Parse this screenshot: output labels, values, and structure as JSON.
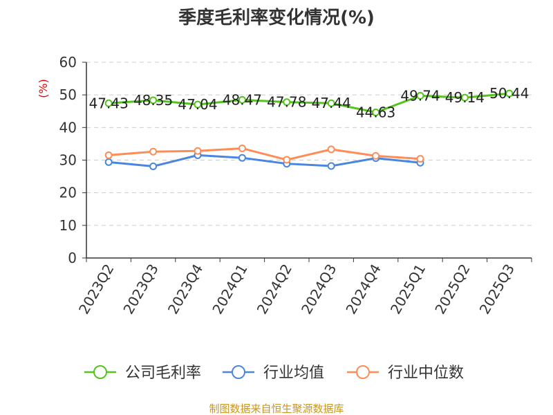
{
  "chart_data": {
    "type": "line",
    "title": "季度毛利率变化情况(%)",
    "ylabel": "(%)",
    "ylim": [
      0,
      60
    ],
    "yticks": [
      0,
      10,
      20,
      30,
      40,
      50,
      60
    ],
    "grid": true,
    "legend_position": "bottom",
    "categories": [
      "2023Q2",
      "2023Q3",
      "2023Q4",
      "2024Q1",
      "2024Q2",
      "2024Q3",
      "2024Q4",
      "2025Q1",
      "2025Q2",
      "2025Q3"
    ],
    "series": [
      {
        "name": "公司毛利率",
        "color": "#52c41a",
        "labels": true,
        "values": [
          47.43,
          48.35,
          47.04,
          48.47,
          47.78,
          47.44,
          44.63,
          49.74,
          49.14,
          50.44
        ]
      },
      {
        "name": "行业均值",
        "color": "#4a86e0",
        "labels": false,
        "values": [
          29.4,
          28.1,
          31.5,
          30.7,
          28.9,
          28.2,
          30.6,
          29.2,
          null,
          null
        ]
      },
      {
        "name": "行业中位数",
        "color": "#ff8c55",
        "labels": false,
        "values": [
          31.5,
          32.6,
          32.8,
          33.6,
          30.1,
          33.3,
          31.3,
          30.4,
          null,
          null
        ]
      }
    ]
  },
  "source": "制图数据来自恒生聚源数据库"
}
